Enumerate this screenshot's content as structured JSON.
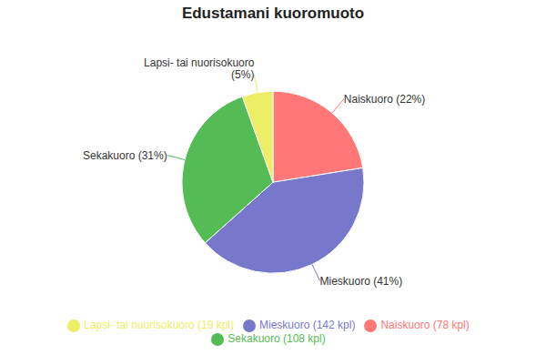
{
  "chart_data": {
    "type": "pie",
    "title": "Edustamani kuoromuoto",
    "categories": [
      "Naiskuoro (78 kpl)",
      "Mieskuoro (142 kpl)",
      "Sekakuoro (108 kpl)",
      "Lapsi- tai nuorisokuoro (19 kpl)"
    ],
    "values": [
      78,
      142,
      108,
      19
    ],
    "colors": [
      "#ff7777",
      "#7777cc",
      "#55bb55",
      "#eeee66"
    ],
    "annotations": [
      "Naiskuoro (22%)",
      "Mieskuoro (41%)",
      "Sekakuoro (31%)",
      "Lapsi- tai nuorisokuoro\n(5%)"
    ],
    "legend": "bottom"
  }
}
